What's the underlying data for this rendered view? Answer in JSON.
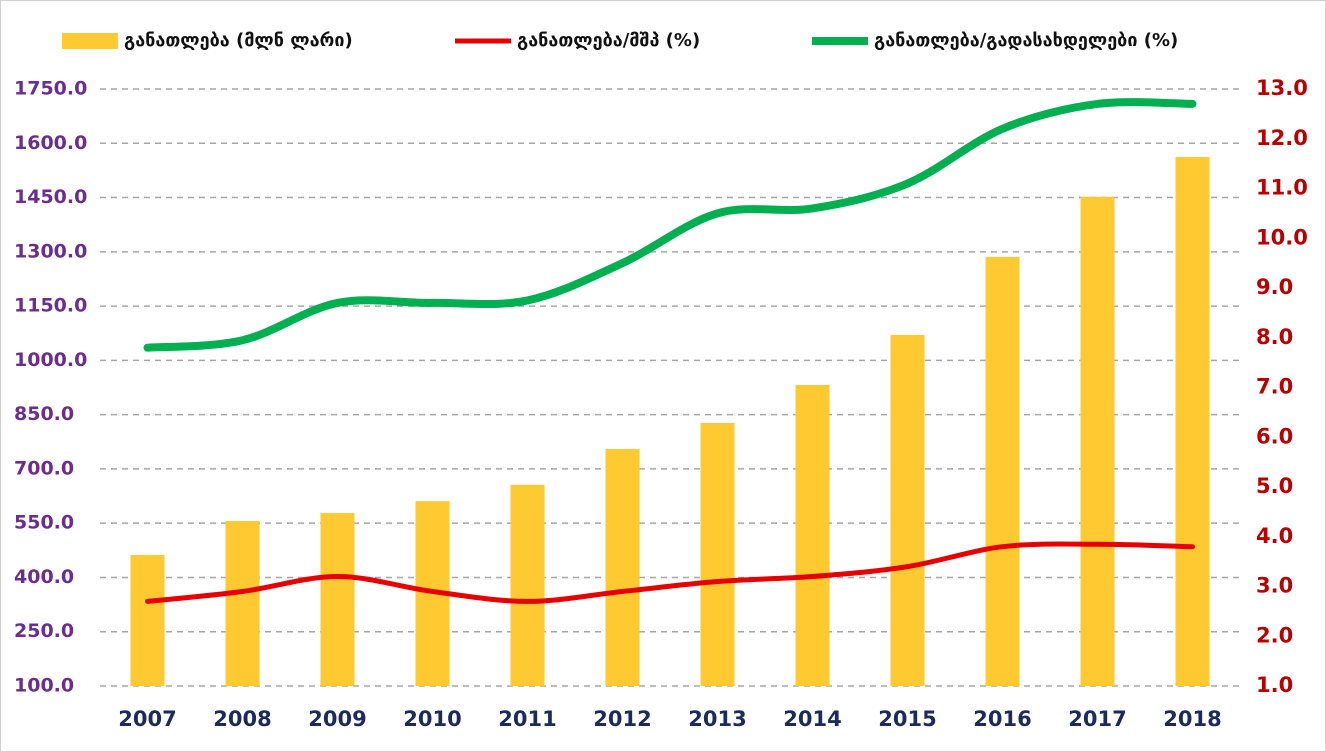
{
  "chart_data": {
    "type": "bar-line",
    "categories": [
      "2007",
      "2008",
      "2009",
      "2010",
      "2011",
      "2012",
      "2013",
      "2014",
      "2015",
      "2016",
      "2017",
      "2018"
    ],
    "series": [
      {
        "name": "განათლება (მლნ ლარი)",
        "type": "bar",
        "color": "#ffc932",
        "values": [
          462,
          556,
          578,
          611,
          656,
          755,
          827,
          932,
          1070,
          1286,
          1452,
          1562
        ]
      },
      {
        "name": "განათლება/მშპ (%)",
        "type": "line",
        "axis": "y2",
        "color": "#e60000",
        "values": [
          2.7,
          2.9,
          3.2,
          2.9,
          2.7,
          2.9,
          3.1,
          3.2,
          3.4,
          3.8,
          3.85,
          3.8
        ]
      },
      {
        "name": "განათლება/გადასახდელები (%)",
        "type": "line",
        "axis": "y2",
        "color": "#00b050",
        "values": [
          7.8,
          7.95,
          8.7,
          8.7,
          8.75,
          9.5,
          10.5,
          10.6,
          11.1,
          12.2,
          12.7,
          12.7
        ]
      }
    ],
    "ylim": [
      100,
      1750
    ],
    "yticks": [
      {
        "value": 100,
        "label": "100.0"
      },
      {
        "value": 250,
        "label": "250.0"
      },
      {
        "value": 400,
        "label": "400.0"
      },
      {
        "value": 550,
        "label": "550.0"
      },
      {
        "value": 700,
        "label": "700.0"
      },
      {
        "value": 850,
        "label": "850.0"
      },
      {
        "value": 1000,
        "label": "1000.0"
      },
      {
        "value": 1150,
        "label": "1150.0"
      },
      {
        "value": 1300,
        "label": "1300.0"
      },
      {
        "value": 1450,
        "label": "1450.0"
      },
      {
        "value": 1600,
        "label": "1600.0"
      },
      {
        "value": 1750,
        "label": "1750.0"
      }
    ],
    "y2lim": [
      1,
      13
    ],
    "y2ticks": [
      {
        "value": 1,
        "label": "1.0"
      },
      {
        "value": 2,
        "label": "2.0"
      },
      {
        "value": 3,
        "label": "3.0"
      },
      {
        "value": 4,
        "label": "4.0"
      },
      {
        "value": 5,
        "label": "5.0"
      },
      {
        "value": 6,
        "label": "6.0"
      },
      {
        "value": 7,
        "label": "7.0"
      },
      {
        "value": 8,
        "label": "8.0"
      },
      {
        "value": 9,
        "label": "9.0"
      },
      {
        "value": 10,
        "label": "10.0"
      },
      {
        "value": 11,
        "label": "11.0"
      },
      {
        "value": 12,
        "label": "12.0"
      },
      {
        "value": 13,
        "label": "13.0"
      }
    ],
    "grid": true,
    "legend": "top"
  }
}
